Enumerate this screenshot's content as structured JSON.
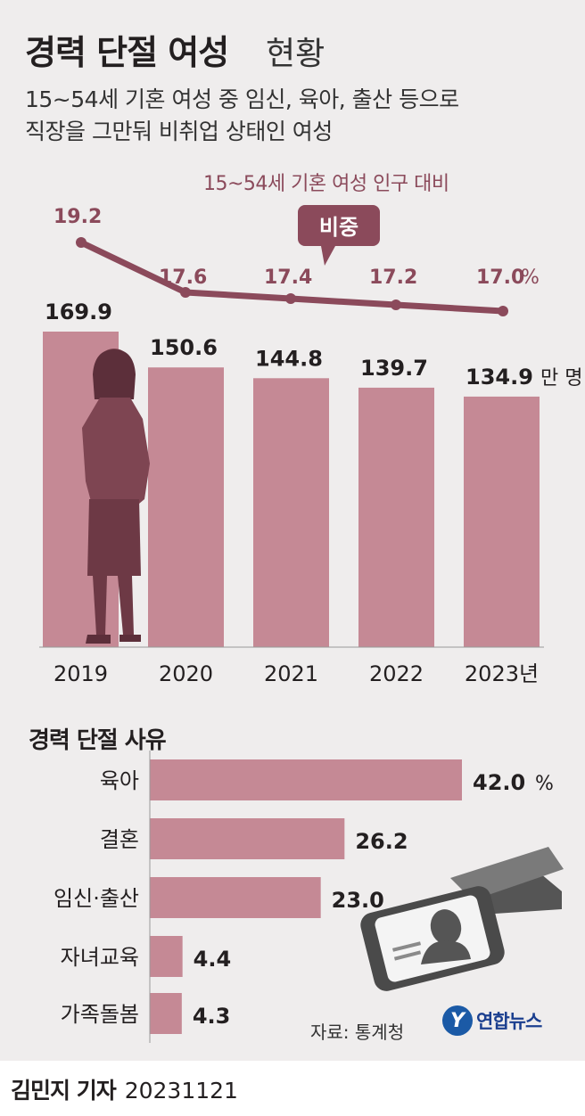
{
  "title": {
    "main": "경력 단절 여성",
    "sub": "현황"
  },
  "subtitle": [
    "15~54세 기혼 여성 중 임신, 육아, 출산 등으로",
    "직장을 그만둬 비취업 상태인 여성"
  ],
  "colors": {
    "bar": "#c58995",
    "line": "#8b4a5b",
    "background": "#efeded",
    "text": "#231f20"
  },
  "chart_data": [
    {
      "type": "bar",
      "categories": [
        "2019",
        "2020",
        "2021",
        "2022",
        "2023년"
      ],
      "series": [
        {
          "name": "",
          "values": [
            169.9,
            150.6,
            144.8,
            139.7,
            134.9
          ]
        }
      ],
      "value_labels": [
        "169.9",
        "150.6",
        "144.8",
        "139.7",
        "134.9"
      ],
      "unit": "만 명",
      "ylim": [
        0,
        180
      ],
      "line": {
        "title": "15~54세 기혼 여성 인구 대비",
        "callout": "비중",
        "values": [
          19.2,
          17.6,
          17.4,
          17.2,
          17.0
        ],
        "value_labels": [
          "19.2",
          "17.6",
          "17.4",
          "17.2",
          "17.0"
        ],
        "unit": "%"
      }
    },
    {
      "type": "bar",
      "orientation": "horizontal",
      "title": "경력 단절 사유",
      "categories": [
        "육아",
        "결혼",
        "임신·출산",
        "자녀교육",
        "가족돌봄"
      ],
      "values": [
        42.0,
        26.2,
        23.0,
        4.4,
        4.3
      ],
      "value_labels": [
        "42.0",
        "26.2",
        "23.0",
        "4.4",
        "4.3"
      ],
      "unit": "%"
    }
  ],
  "source": "자료: 통계청",
  "logo": {
    "mark": "Y",
    "name": "연합뉴스"
  },
  "credit": {
    "author": "김민지 기자",
    "date": "20231121"
  },
  "icons": [
    "woman-silhouette-icon",
    "id-badge-icon"
  ]
}
